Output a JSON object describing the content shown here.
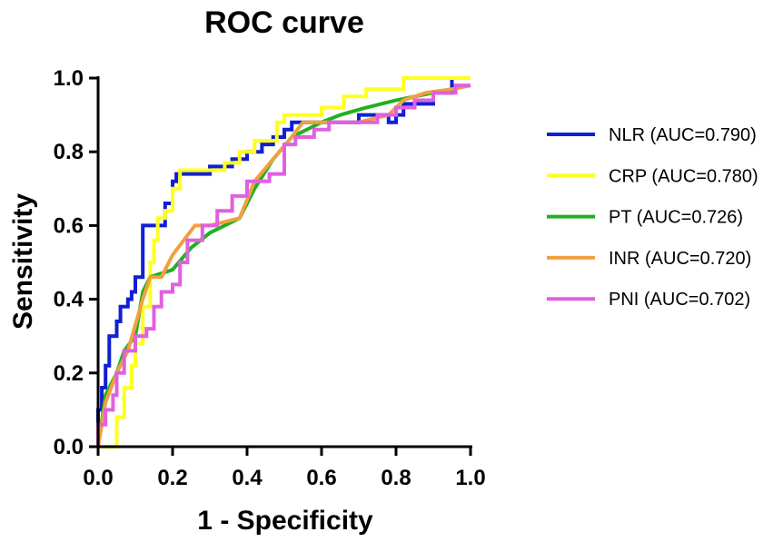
{
  "chart_data": {
    "type": "line",
    "title": "ROC curve",
    "xlabel": "1 - Specificity",
    "ylabel": "Sensitivity",
    "xlim": [
      0,
      1
    ],
    "ylim": [
      0,
      1
    ],
    "x_ticks": [
      "0.0",
      "0.2",
      "0.4",
      "0.6",
      "0.8",
      "1.0"
    ],
    "y_ticks": [
      "0.0",
      "0.2",
      "0.4",
      "0.6",
      "0.8",
      "1.0"
    ],
    "legend_position": "right",
    "series": [
      {
        "name": "NLR (AUC=0.790)",
        "color": "#1020d0",
        "points": [
          [
            0,
            0
          ],
          [
            0,
            0.1
          ],
          [
            0.01,
            0.1
          ],
          [
            0.01,
            0.16
          ],
          [
            0.02,
            0.16
          ],
          [
            0.02,
            0.22
          ],
          [
            0.03,
            0.22
          ],
          [
            0.03,
            0.3
          ],
          [
            0.05,
            0.3
          ],
          [
            0.05,
            0.34
          ],
          [
            0.06,
            0.34
          ],
          [
            0.06,
            0.38
          ],
          [
            0.08,
            0.38
          ],
          [
            0.08,
            0.4
          ],
          [
            0.09,
            0.4
          ],
          [
            0.09,
            0.42
          ],
          [
            0.1,
            0.42
          ],
          [
            0.1,
            0.46
          ],
          [
            0.12,
            0.46
          ],
          [
            0.12,
            0.6
          ],
          [
            0.18,
            0.6
          ],
          [
            0.18,
            0.66
          ],
          [
            0.2,
            0.66
          ],
          [
            0.2,
            0.72
          ],
          [
            0.21,
            0.72
          ],
          [
            0.21,
            0.74
          ],
          [
            0.3,
            0.74
          ],
          [
            0.3,
            0.76
          ],
          [
            0.36,
            0.76
          ],
          [
            0.36,
            0.78
          ],
          [
            0.4,
            0.78
          ],
          [
            0.4,
            0.8
          ],
          [
            0.44,
            0.8
          ],
          [
            0.44,
            0.82
          ],
          [
            0.47,
            0.82
          ],
          [
            0.47,
            0.84
          ],
          [
            0.5,
            0.84
          ],
          [
            0.5,
            0.86
          ],
          [
            0.52,
            0.86
          ],
          [
            0.52,
            0.88
          ],
          [
            0.7,
            0.88
          ],
          [
            0.7,
            0.9
          ],
          [
            0.78,
            0.9
          ],
          [
            0.78,
            0.88
          ],
          [
            0.8,
            0.88
          ],
          [
            0.8,
            0.9
          ],
          [
            0.82,
            0.9
          ],
          [
            0.82,
            0.93
          ],
          [
            0.9,
            0.93
          ],
          [
            0.9,
            0.96
          ],
          [
            0.95,
            0.96
          ],
          [
            0.95,
            1.0
          ],
          [
            1.0,
            1.0
          ]
        ]
      },
      {
        "name": "CRP (AUC=0.780)",
        "color": "#ffff20",
        "points": [
          [
            0,
            0
          ],
          [
            0.05,
            0
          ],
          [
            0.05,
            0.08
          ],
          [
            0.07,
            0.08
          ],
          [
            0.07,
            0.16
          ],
          [
            0.09,
            0.16
          ],
          [
            0.09,
            0.22
          ],
          [
            0.1,
            0.22
          ],
          [
            0.1,
            0.28
          ],
          [
            0.12,
            0.28
          ],
          [
            0.12,
            0.38
          ],
          [
            0.14,
            0.38
          ],
          [
            0.14,
            0.5
          ],
          [
            0.15,
            0.5
          ],
          [
            0.15,
            0.56
          ],
          [
            0.16,
            0.56
          ],
          [
            0.16,
            0.62
          ],
          [
            0.18,
            0.62
          ],
          [
            0.18,
            0.64
          ],
          [
            0.2,
            0.64
          ],
          [
            0.2,
            0.7
          ],
          [
            0.22,
            0.7
          ],
          [
            0.22,
            0.75
          ],
          [
            0.34,
            0.75
          ],
          [
            0.34,
            0.77
          ],
          [
            0.38,
            0.77
          ],
          [
            0.38,
            0.8
          ],
          [
            0.42,
            0.8
          ],
          [
            0.42,
            0.83
          ],
          [
            0.48,
            0.83
          ],
          [
            0.48,
            0.88
          ],
          [
            0.5,
            0.88
          ],
          [
            0.5,
            0.9
          ],
          [
            0.52,
            0.9
          ],
          [
            0.52,
            0.9
          ],
          [
            0.6,
            0.9
          ],
          [
            0.6,
            0.92
          ],
          [
            0.66,
            0.92
          ],
          [
            0.66,
            0.95
          ],
          [
            0.72,
            0.95
          ],
          [
            0.72,
            0.97
          ],
          [
            0.82,
            0.97
          ],
          [
            0.82,
            1.0
          ],
          [
            1.0,
            1.0
          ]
        ]
      },
      {
        "name": "PT (AUC=0.726)",
        "color": "#20b020",
        "points": [
          [
            0,
            0
          ],
          [
            0.02,
            0.14
          ],
          [
            0.05,
            0.2
          ],
          [
            0.07,
            0.26
          ],
          [
            0.1,
            0.3
          ],
          [
            0.12,
            0.42
          ],
          [
            0.14,
            0.46
          ],
          [
            0.2,
            0.48
          ],
          [
            0.25,
            0.54
          ],
          [
            0.3,
            0.58
          ],
          [
            0.38,
            0.62
          ],
          [
            0.42,
            0.7
          ],
          [
            0.47,
            0.78
          ],
          [
            0.52,
            0.84
          ],
          [
            0.6,
            0.88
          ],
          [
            0.65,
            0.9
          ],
          [
            0.72,
            0.92
          ],
          [
            0.8,
            0.94
          ],
          [
            0.9,
            0.96
          ],
          [
            1.0,
            0.98
          ]
        ]
      },
      {
        "name": "INR (AUC=0.720)",
        "color": "#f0a040",
        "points": [
          [
            0,
            0
          ],
          [
            0.02,
            0.12
          ],
          [
            0.05,
            0.2
          ],
          [
            0.08,
            0.26
          ],
          [
            0.12,
            0.4
          ],
          [
            0.14,
            0.46
          ],
          [
            0.17,
            0.46
          ],
          [
            0.2,
            0.52
          ],
          [
            0.26,
            0.6
          ],
          [
            0.3,
            0.6
          ],
          [
            0.38,
            0.62
          ],
          [
            0.42,
            0.72
          ],
          [
            0.47,
            0.78
          ],
          [
            0.52,
            0.84
          ],
          [
            0.55,
            0.88
          ],
          [
            0.62,
            0.88
          ],
          [
            0.7,
            0.88
          ],
          [
            0.78,
            0.9
          ],
          [
            0.82,
            0.94
          ],
          [
            0.88,
            0.96
          ],
          [
            0.95,
            0.97
          ],
          [
            1.0,
            0.98
          ]
        ]
      },
      {
        "name": "PNI (AUC=0.702)",
        "color": "#e060e0",
        "points": [
          [
            0,
            0
          ],
          [
            0,
            0.06
          ],
          [
            0.02,
            0.06
          ],
          [
            0.02,
            0.1
          ],
          [
            0.04,
            0.1
          ],
          [
            0.04,
            0.14
          ],
          [
            0.05,
            0.14
          ],
          [
            0.05,
            0.2
          ],
          [
            0.07,
            0.2
          ],
          [
            0.07,
            0.26
          ],
          [
            0.1,
            0.26
          ],
          [
            0.1,
            0.3
          ],
          [
            0.13,
            0.3
          ],
          [
            0.13,
            0.32
          ],
          [
            0.15,
            0.32
          ],
          [
            0.15,
            0.38
          ],
          [
            0.17,
            0.38
          ],
          [
            0.17,
            0.42
          ],
          [
            0.2,
            0.42
          ],
          [
            0.2,
            0.44
          ],
          [
            0.22,
            0.44
          ],
          [
            0.22,
            0.5
          ],
          [
            0.24,
            0.5
          ],
          [
            0.24,
            0.56
          ],
          [
            0.28,
            0.56
          ],
          [
            0.28,
            0.6
          ],
          [
            0.32,
            0.6
          ],
          [
            0.32,
            0.64
          ],
          [
            0.36,
            0.64
          ],
          [
            0.36,
            0.68
          ],
          [
            0.4,
            0.68
          ],
          [
            0.4,
            0.72
          ],
          [
            0.46,
            0.72
          ],
          [
            0.46,
            0.74
          ],
          [
            0.5,
            0.74
          ],
          [
            0.5,
            0.82
          ],
          [
            0.53,
            0.82
          ],
          [
            0.53,
            0.84
          ],
          [
            0.58,
            0.84
          ],
          [
            0.58,
            0.86
          ],
          [
            0.62,
            0.86
          ],
          [
            0.62,
            0.88
          ],
          [
            0.75,
            0.88
          ],
          [
            0.75,
            0.9
          ],
          [
            0.8,
            0.9
          ],
          [
            0.8,
            0.92
          ],
          [
            0.85,
            0.92
          ],
          [
            0.85,
            0.94
          ],
          [
            0.9,
            0.94
          ],
          [
            0.9,
            0.96
          ],
          [
            0.96,
            0.96
          ],
          [
            0.96,
            0.98
          ],
          [
            1.0,
            0.98
          ]
        ]
      }
    ]
  }
}
